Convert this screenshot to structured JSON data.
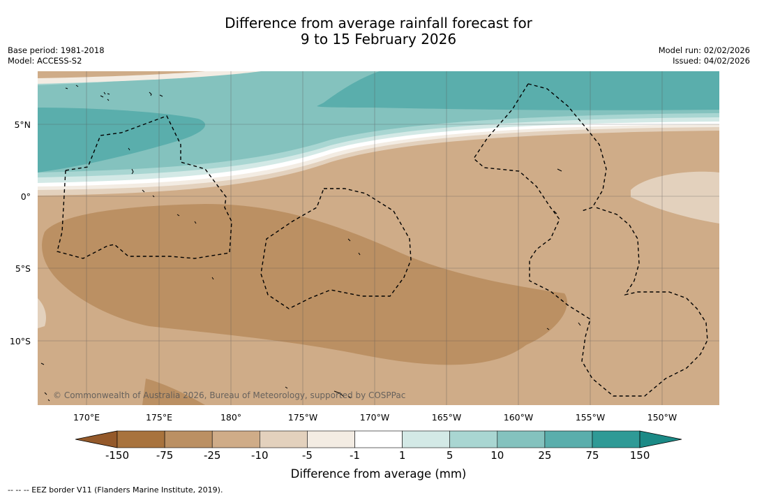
{
  "title": {
    "line1": "Difference from average rainfall forecast for",
    "line2": "9 to 15 February 2026"
  },
  "meta": {
    "base_period": "Base period: 1981-2018",
    "model": "Model: ACCESS-S2",
    "model_run": "Model run: 02/02/2026",
    "issued": "Issued: 04/02/2026"
  },
  "map": {
    "lat_labels": [
      "5°N",
      "0°",
      "5°S",
      "10°S"
    ],
    "lon_labels": [
      "170°E",
      "175°E",
      "180°",
      "175°W",
      "170°W",
      "165°W",
      "160°W",
      "155°W",
      "150°W"
    ],
    "copyright": "© Commonwealth of Australia 2026, Bureau of Meteorology, supported by COSPPac"
  },
  "colorbar": {
    "labels": [
      "-150",
      "-75",
      "-25",
      "-10",
      "-5",
      "-1",
      "1",
      "5",
      "10",
      "25",
      "75",
      "150"
    ],
    "colors": [
      "#a8733d",
      "#bb9063",
      "#cfac88",
      "#e3d1bd",
      "#f3ece3",
      "#ffffff",
      "#d3e9e6",
      "#a9d6d2",
      "#84c2be",
      "#5aaeac",
      "#2f9a96"
    ],
    "end_low_color": "#94592a",
    "end_high_color": "#1b8a86",
    "title": "Difference from average (mm)"
  },
  "footer": "--  --  -- EEZ border V11 (Flanders Marine Institute, 2019)."
}
